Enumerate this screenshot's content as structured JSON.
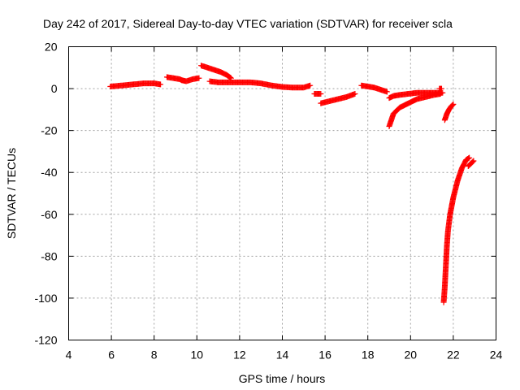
{
  "chart_data": {
    "type": "scatter",
    "title": "Day 242 of 2017, Sidereal Day-to-day VTEC variation (SDTVAR) for receiver scla",
    "xlabel": "GPS time / hours",
    "ylabel": "SDTVAR / TECUs",
    "xlim": [
      4,
      24
    ],
    "ylim": [
      -120,
      20
    ],
    "xticks": [
      4,
      6,
      8,
      10,
      12,
      14,
      16,
      18,
      20,
      22,
      24
    ],
    "yticks": [
      -120,
      -100,
      -80,
      -60,
      -40,
      -20,
      0,
      20
    ],
    "grid": true,
    "marker": "plus",
    "color": "#ff0000",
    "segments": [
      {
        "name": "seg1",
        "x": [
          5.95,
          6.5,
          7.0,
          7.5,
          8.0,
          8.3
        ],
        "y": [
          1.0,
          1.5,
          2.0,
          2.5,
          2.5,
          2.0
        ]
      },
      {
        "name": "seg2",
        "x": [
          8.6,
          8.9,
          9.2,
          9.3
        ],
        "y": [
          5.5,
          5.0,
          4.5,
          4.0
        ]
      },
      {
        "name": "seg3",
        "x": [
          9.3,
          9.5,
          9.8,
          10.1
        ],
        "y": [
          4.0,
          3.5,
          4.5,
          5.0
        ]
      },
      {
        "name": "seg4",
        "x": [
          10.2,
          10.5,
          10.8,
          11.1,
          11.4,
          11.6
        ],
        "y": [
          11.0,
          10.0,
          9.0,
          8.0,
          6.5,
          5.0
        ]
      },
      {
        "name": "seg5",
        "x": [
          10.6,
          11.0,
          11.5,
          12.0,
          12.5,
          13.0,
          13.5,
          14.0,
          14.5,
          15.0,
          15.3
        ],
        "y": [
          3.5,
          3.0,
          3.0,
          3.0,
          3.0,
          2.5,
          1.5,
          0.8,
          0.5,
          0.5,
          1.5
        ]
      },
      {
        "name": "seg6",
        "x": [
          15.5,
          15.8
        ],
        "y": [
          -2.5,
          -2.5
        ]
      },
      {
        "name": "seg7",
        "x": [
          15.8,
          16.2,
          16.6,
          17.0,
          17.4
        ],
        "y": [
          -7.0,
          -6.0,
          -5.0,
          -4.0,
          -2.5
        ]
      },
      {
        "name": "seg8",
        "x": [
          17.7,
          18.0,
          18.3,
          18.6,
          18.9
        ],
        "y": [
          1.5,
          1.0,
          0.5,
          -0.5,
          -1.5
        ]
      },
      {
        "name": "seg9",
        "x": [
          19.0,
          19.2,
          19.5,
          19.9,
          20.3,
          20.7,
          21.1,
          21.5
        ],
        "y": [
          -4.5,
          -3.5,
          -3.0,
          -2.5,
          -2.0,
          -2.0,
          -2.0,
          -2.0
        ]
      },
      {
        "name": "seg10",
        "x": [
          19.0,
          19.2,
          19.5,
          19.9,
          20.3,
          20.7,
          21.1,
          21.4
        ],
        "y": [
          -18.0,
          -12.0,
          -9.0,
          -7.0,
          -5.0,
          -4.0,
          -3.0,
          -2.5
        ]
      },
      {
        "name": "seg11",
        "x": [
          21.35,
          21.45
        ],
        "y": [
          0.0,
          0.0
        ]
      },
      {
        "name": "seg12",
        "x": [
          21.6,
          21.7,
          21.8,
          21.9,
          22.0
        ],
        "y": [
          -15.0,
          -12.0,
          -10.0,
          -8.5,
          -7.5
        ]
      },
      {
        "name": "seg13",
        "x": [
          21.55,
          21.6,
          21.65,
          21.7,
          21.75,
          21.85,
          22.0,
          22.2,
          22.4,
          22.6,
          22.75
        ],
        "y": [
          -102.0,
          -95.0,
          -85.0,
          -75.0,
          -68.0,
          -60.0,
          -52.0,
          -44.0,
          -38.0,
          -34.0,
          -33.0
        ]
      },
      {
        "name": "seg14",
        "x": [
          22.7,
          22.85,
          22.95
        ],
        "y": [
          -37.0,
          -35.5,
          -34.5
        ]
      }
    ]
  }
}
